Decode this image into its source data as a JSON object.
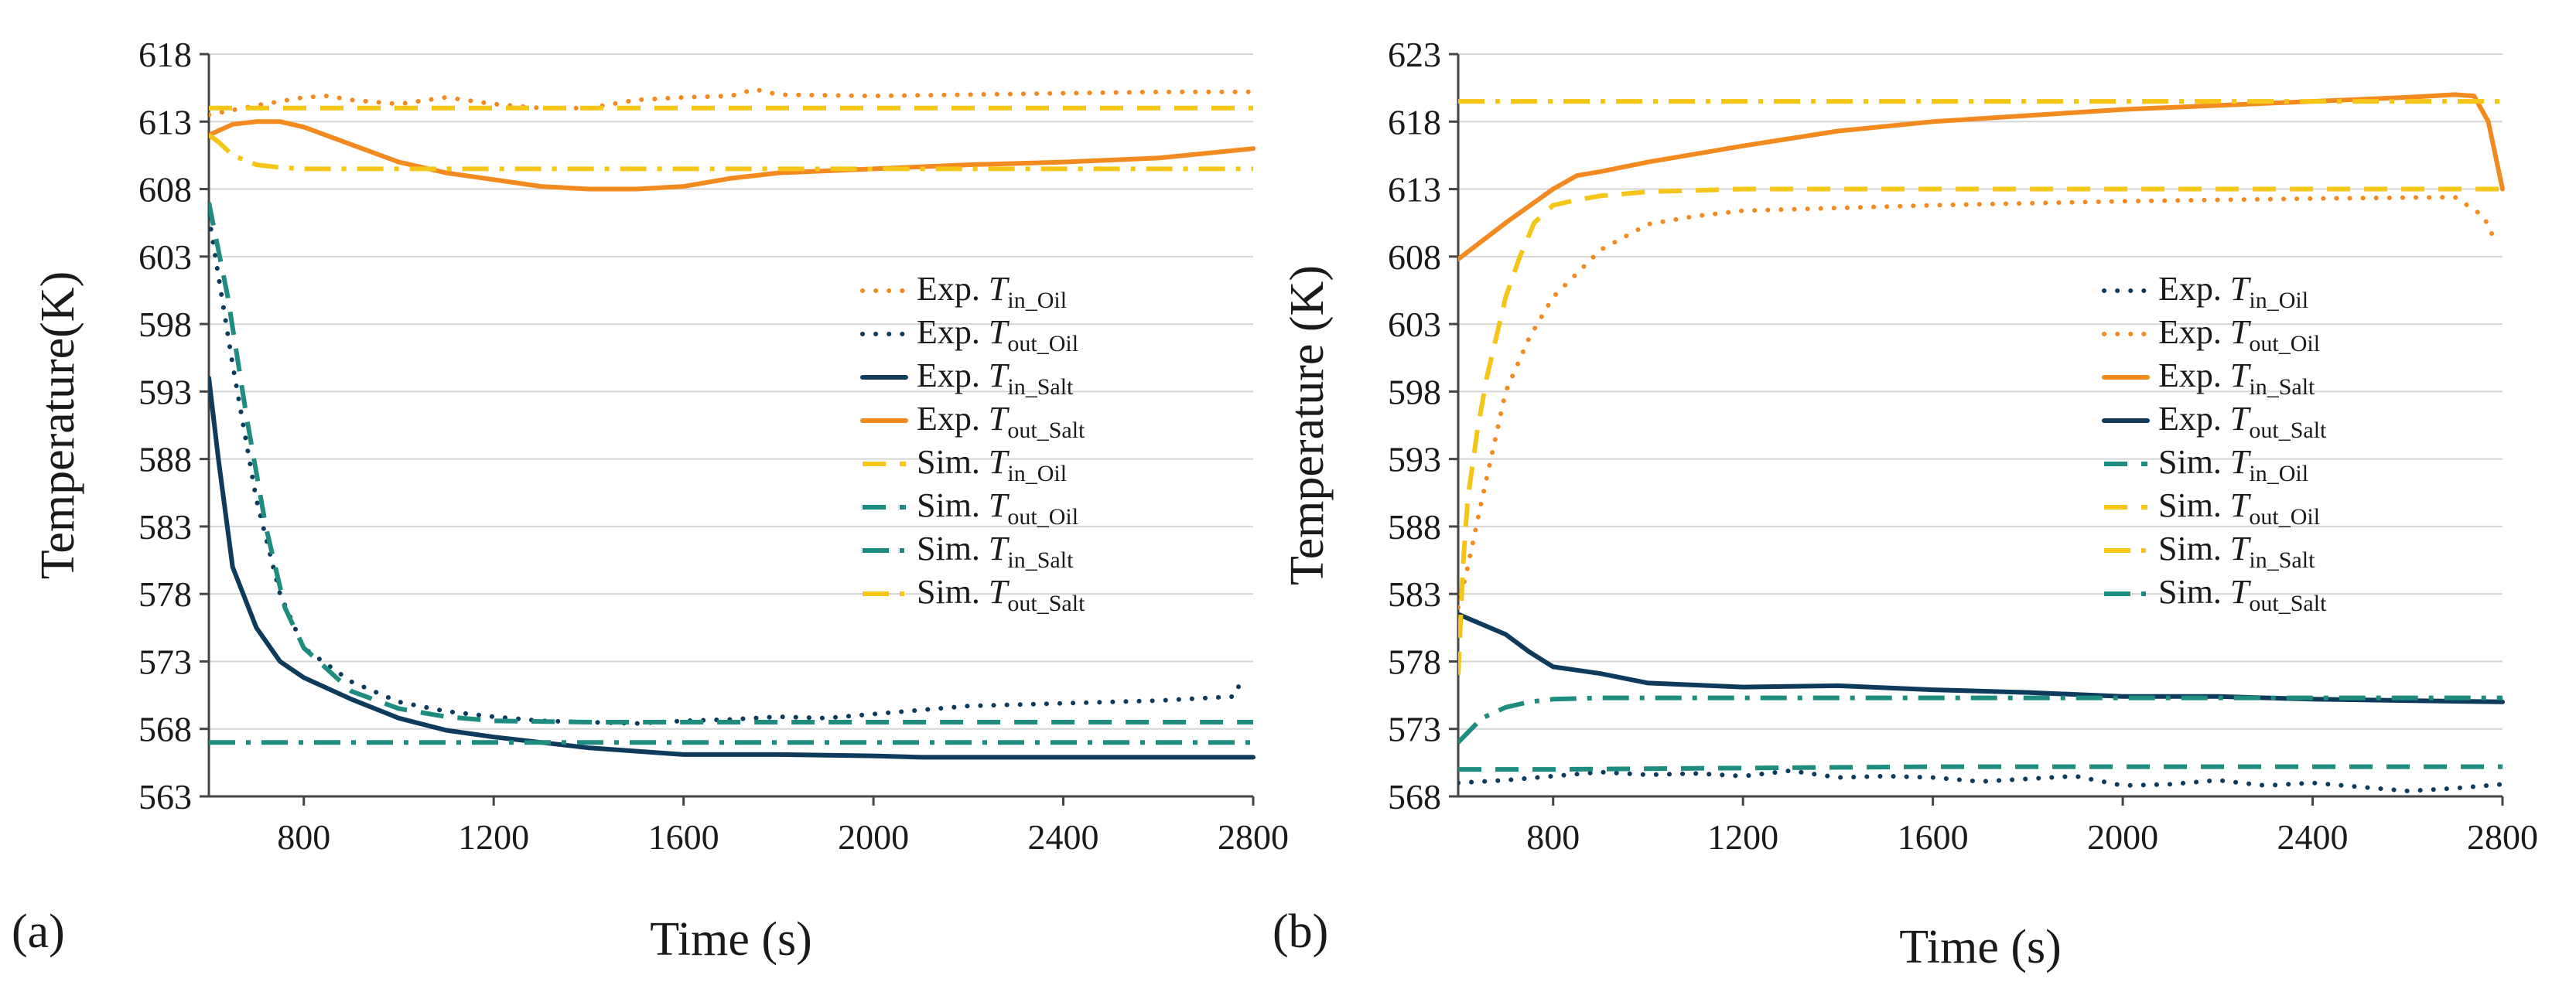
{
  "figure": {
    "panel_labels": [
      "(a)",
      "(b)"
    ]
  },
  "colors": {
    "orange": "#F28A20",
    "navy": "#0E3A5C",
    "yellow": "#F5C518",
    "teal": "#1E8C7E",
    "axis": "#444444",
    "grid": "#D6D6D6"
  },
  "chart_data": [
    {
      "type": "line",
      "panel": "(a)",
      "title": "",
      "xlabel": "Time (s)",
      "ylabel": "Temperature(K)",
      "xlim": [
        600,
        2800
      ],
      "ylim": [
        563,
        618
      ],
      "xticks": [
        800,
        1200,
        1600,
        2000,
        2400,
        2800
      ],
      "yticks": [
        563,
        568,
        573,
        578,
        583,
        588,
        593,
        598,
        603,
        608,
        613,
        618
      ],
      "grid": true,
      "legend_position": "center-right",
      "series": [
        {
          "prefix": "Exp. ",
          "var": "T",
          "sub": "in_Oil",
          "color": "orange",
          "style": "dotted",
          "x": [
            600,
            700,
            800,
            850,
            900,
            1000,
            1100,
            1200,
            1300,
            1400,
            1500,
            1600,
            1700,
            1750,
            1800,
            2000,
            2200,
            2400,
            2600,
            2800
          ],
          "values": [
            613.5,
            614.2,
            614.8,
            614.9,
            614.6,
            614.3,
            614.8,
            614.3,
            614.0,
            614.0,
            614.6,
            614.8,
            614.9,
            615.4,
            615.0,
            614.9,
            615.0,
            615.1,
            615.2,
            615.2
          ]
        },
        {
          "prefix": "Exp. ",
          "var": "T",
          "sub": "out_Oil",
          "color": "navy",
          "style": "dotted",
          "x": [
            600,
            650,
            700,
            750,
            800,
            900,
            1000,
            1100,
            1200,
            1300,
            1400,
            1500,
            1600,
            1700,
            1800,
            1900,
            2000,
            2100,
            2200,
            2400,
            2600,
            2760,
            2780
          ],
          "values": [
            606,
            595,
            585,
            578,
            574,
            571.5,
            570,
            569.3,
            568.9,
            568.6,
            568.5,
            568.4,
            568.6,
            568.7,
            568.9,
            568.8,
            569.1,
            569.4,
            569.7,
            569.9,
            570.1,
            570.4,
            572
          ]
        },
        {
          "prefix": "Exp. ",
          "var": "T",
          "sub": "in_Salt",
          "color": "navy",
          "style": "solid",
          "x": [
            600,
            620,
            650,
            700,
            750,
            800,
            900,
            1000,
            1100,
            1200,
            1400,
            1600,
            1800,
            2000,
            2100,
            2200,
            2400,
            2600,
            2800
          ],
          "values": [
            594,
            588,
            580,
            575.5,
            573,
            571.8,
            570.2,
            568.8,
            567.9,
            567.4,
            566.6,
            566.1,
            566.1,
            566.0,
            565.9,
            565.9,
            565.9,
            565.9,
            565.9
          ]
        },
        {
          "prefix": "Exp. ",
          "var": "T",
          "sub": "out_Salt",
          "color": "orange",
          "style": "solid",
          "x": [
            600,
            650,
            700,
            750,
            800,
            900,
            1000,
            1100,
            1200,
            1300,
            1400,
            1500,
            1600,
            1700,
            1800,
            2000,
            2200,
            2400,
            2600,
            2800
          ],
          "values": [
            612,
            612.8,
            613.0,
            613.0,
            612.6,
            611.3,
            610.0,
            609.2,
            608.7,
            608.2,
            608.0,
            608.0,
            608.2,
            608.8,
            609.2,
            609.5,
            609.8,
            610.0,
            610.3,
            611.0
          ]
        },
        {
          "prefix": "Sim. ",
          "var": "T",
          "sub": "in_Oil",
          "color": "yellow",
          "style": "dashed",
          "x": [
            600,
            700,
            800,
            2800
          ],
          "values": [
            614,
            614,
            614,
            614
          ]
        },
        {
          "prefix": "Sim. ",
          "var": "T",
          "sub": "out_Oil",
          "color": "teal",
          "style": "dashed",
          "x": [
            600,
            640,
            680,
            720,
            760,
            800,
            900,
            1000,
            1100,
            1200,
            1400,
            1600,
            2000,
            2400,
            2800
          ],
          "values": [
            607,
            600,
            591,
            583,
            577,
            574,
            570.8,
            569.5,
            568.9,
            568.6,
            568.5,
            568.5,
            568.5,
            568.5,
            568.5
          ]
        },
        {
          "prefix": "Sim. ",
          "var": "T",
          "sub": "in_Salt",
          "color": "teal",
          "style": "dashdot",
          "x": [
            600,
            2800
          ],
          "values": [
            567,
            567
          ]
        },
        {
          "prefix": "Sim. ",
          "var": "T",
          "sub": "out_Salt",
          "color": "yellow",
          "style": "dashdot",
          "x": [
            600,
            620,
            650,
            700,
            750,
            800,
            1000,
            1400,
            2000,
            2400,
            2800
          ],
          "values": [
            612,
            611.5,
            610.5,
            609.8,
            609.6,
            609.5,
            609.5,
            609.5,
            609.5,
            609.5,
            609.5
          ]
        }
      ]
    },
    {
      "type": "line",
      "panel": "(b)",
      "title": "",
      "xlabel": "Time (s)",
      "ylabel": "Temperature (K)",
      "xlim": [
        600,
        2800
      ],
      "ylim": [
        568,
        623
      ],
      "xticks": [
        800,
        1200,
        1600,
        2000,
        2400,
        2800
      ],
      "yticks": [
        568,
        573,
        578,
        583,
        588,
        593,
        598,
        603,
        608,
        613,
        618,
        623
      ],
      "grid": true,
      "legend_position": "center-right",
      "series": [
        {
          "prefix": "Exp. ",
          "var": "T",
          "sub": "in_Oil",
          "color": "navy",
          "style": "dotted",
          "x": [
            600,
            700,
            800,
            900,
            1000,
            1100,
            1200,
            1300,
            1400,
            1500,
            1600,
            1700,
            1800,
            1900,
            2000,
            2100,
            2200,
            2300,
            2400,
            2500,
            2600,
            2700,
            2800
          ],
          "values": [
            569.0,
            569.2,
            569.5,
            569.8,
            569.6,
            569.7,
            569.5,
            569.9,
            569.4,
            569.5,
            569.4,
            569.1,
            569.3,
            569.5,
            568.8,
            568.9,
            569.2,
            568.8,
            569.0,
            568.7,
            568.4,
            568.6,
            568.9
          ]
        },
        {
          "prefix": "Exp. ",
          "var": "T",
          "sub": "out_Oil",
          "color": "orange",
          "style": "dotted",
          "x": [
            600,
            620,
            650,
            700,
            750,
            800,
            900,
            1000,
            1100,
            1200,
            1400,
            1600,
            2000,
            2400,
            2700,
            2760,
            2780
          ],
          "values": [
            582,
            585,
            590,
            598,
            602,
            605,
            608.5,
            610.4,
            611.0,
            611.4,
            611.6,
            611.8,
            612.1,
            612.3,
            612.4,
            611,
            609.5
          ]
        },
        {
          "prefix": "Exp. ",
          "var": "T",
          "sub": "in_Salt",
          "color": "orange",
          "style": "solid",
          "x": [
            600,
            700,
            800,
            850,
            900,
            1000,
            1200,
            1400,
            1600,
            2000,
            2400,
            2600,
            2700,
            2740,
            2770,
            2800
          ],
          "values": [
            607.8,
            610.5,
            613.0,
            614.0,
            614.3,
            615.0,
            616.2,
            617.3,
            618.0,
            618.9,
            619.5,
            619.8,
            620.0,
            619.9,
            618.0,
            613.0
          ]
        },
        {
          "prefix": "Exp. ",
          "var": "T",
          "sub": "out_Salt",
          "color": "navy",
          "style": "solid",
          "x": [
            600,
            700,
            750,
            800,
            900,
            1000,
            1200,
            1400,
            1600,
            1800,
            2000,
            2200,
            2400,
            2600,
            2800
          ],
          "values": [
            581.5,
            580.0,
            578.7,
            577.6,
            577.1,
            576.4,
            576.1,
            576.2,
            575.9,
            575.7,
            575.4,
            575.4,
            575.2,
            575.1,
            575.0
          ]
        },
        {
          "prefix": "Sim. ",
          "var": "T",
          "sub": "in_Oil",
          "color": "teal",
          "style": "dashed",
          "x": [
            600,
            800,
            1200,
            1600,
            2000,
            2400,
            2800
          ],
          "values": [
            570.0,
            570.0,
            570.1,
            570.2,
            570.2,
            570.2,
            570.2
          ]
        },
        {
          "prefix": "Sim. ",
          "var": "T",
          "sub": "out_Oil",
          "color": "yellow",
          "style": "dashed",
          "x": [
            600,
            610,
            620,
            640,
            660,
            680,
            700,
            730,
            760,
            800,
            850,
            900,
            1000,
            1200,
            1600,
            2000,
            2400,
            2800
          ],
          "values": [
            577,
            585,
            590,
            595,
            599,
            602,
            605,
            608,
            610.5,
            611.8,
            612.2,
            612.5,
            612.8,
            613,
            613,
            613,
            613,
            613
          ]
        },
        {
          "prefix": "Sim. ",
          "var": "T",
          "sub": "in_Salt",
          "color": "yellow",
          "style": "dashdot",
          "x": [
            600,
            2800
          ],
          "values": [
            619.5,
            619.5
          ]
        },
        {
          "prefix": "Sim. ",
          "var": "T",
          "sub": "out_Salt",
          "color": "teal",
          "style": "dashdot",
          "x": [
            600,
            650,
            700,
            750,
            800,
            900,
            1000,
            1400,
            2000,
            2400,
            2800
          ],
          "values": [
            572.0,
            573.8,
            574.6,
            575.0,
            575.2,
            575.3,
            575.3,
            575.3,
            575.3,
            575.3,
            575.3
          ]
        }
      ]
    }
  ]
}
